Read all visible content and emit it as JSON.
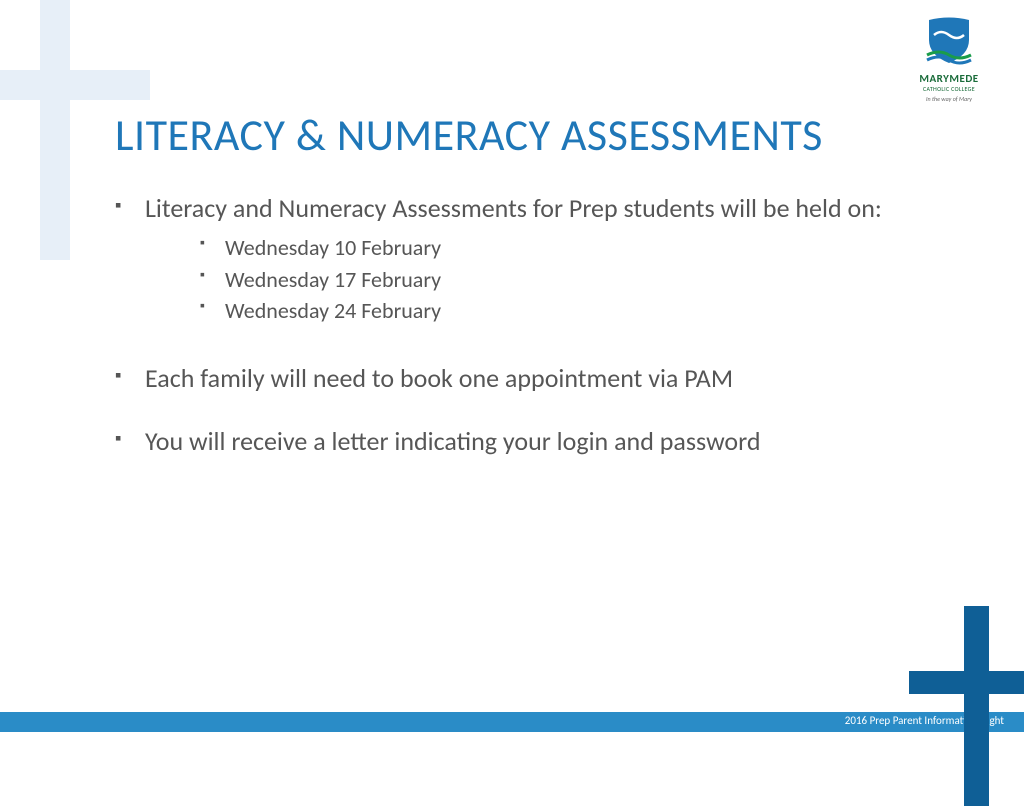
{
  "colors": {
    "title": "#1f77b8",
    "body_text": "#565656",
    "cross_light": "#e7eff8",
    "footer_bar": "#2a8cc7",
    "footer_cross": "#0f5f96",
    "logo_blue": "#1f77b8",
    "logo_green": "#1a9c4a"
  },
  "logo": {
    "name": "MARYMEDE",
    "subline": "CATHOLIC COLLEGE",
    "tagline": "In the way of Mary"
  },
  "title": "LITERACY & NUMERACY ASSESSMENTS",
  "bullets": [
    {
      "text": "Literacy and Numeracy Assessments for Prep students will be held on:",
      "sub": [
        "Wednesday 10 February",
        "Wednesday 17 February",
        "Wednesday 24 February"
      ]
    },
    {
      "text": "Each family will need to book one appointment via PAM",
      "sub": []
    },
    {
      "text": "You will receive a letter indicating your login and password",
      "sub": []
    }
  ],
  "footer": "2016 Prep Parent Information Night"
}
